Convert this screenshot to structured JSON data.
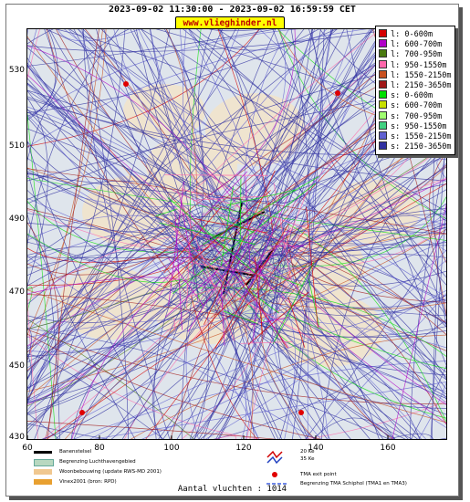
{
  "header": {
    "title": "2023-09-02 11:30:00 - 2023-09-02 16:59:59 CET",
    "brand": "www.vlieghinder.nl"
  },
  "axes": {
    "y_ticks": [
      "530",
      "510",
      "490",
      "470",
      "450",
      "430"
    ],
    "x_ticks": [
      "60",
      "80",
      "100",
      "120",
      "140",
      "160"
    ],
    "x_range": [
      60,
      176
    ],
    "y_range": [
      430,
      540
    ]
  },
  "legend": {
    "items": [
      {
        "label": "l: 0-600m",
        "color": "#d40000"
      },
      {
        "label": "l: 600-700m",
        "color": "#b000c8"
      },
      {
        "label": "l: 700-950m",
        "color": "#4a7a10"
      },
      {
        "label": "l: 950-1550m",
        "color": "#ff66aa"
      },
      {
        "label": "l: 1550-2150m",
        "color": "#c85020"
      },
      {
        "label": "l: 2150-3650m",
        "color": "#a01818"
      },
      {
        "label": "s: 0-600m",
        "color": "#00e000"
      },
      {
        "label": "s: 600-700m",
        "color": "#c8e000"
      },
      {
        "label": "s: 700-950m",
        "color": "#a0ff70"
      },
      {
        "label": "s: 950-1550m",
        "color": "#40d080"
      },
      {
        "label": "s: 1550-2150m",
        "color": "#6060d0"
      },
      {
        "label": "s: 2150-3650m",
        "color": "#3030a0"
      }
    ]
  },
  "bottom_legend": {
    "items": [
      {
        "label": "Banenstelsel",
        "color": "#000000"
      },
      {
        "label": "Begrenzing Luchthavengebied",
        "color": "#b8d8c0"
      },
      {
        "label": "Woonbebouwing (update RWS-MD 2001)",
        "color": "#f0c890"
      },
      {
        "label": "Vinex2001 (bron: RPD)",
        "color": "#e8a030"
      }
    ],
    "symbol_items": [
      {
        "label": "20 Ke"
      },
      {
        "label": "35 Ke"
      },
      {
        "label": "TMA exit point"
      },
      {
        "label": "Begrenzing TMA Schiphol  (TMA1 en TMA3)"
      }
    ]
  },
  "footer": {
    "label": "Aantal vluchten : 1014"
  }
}
